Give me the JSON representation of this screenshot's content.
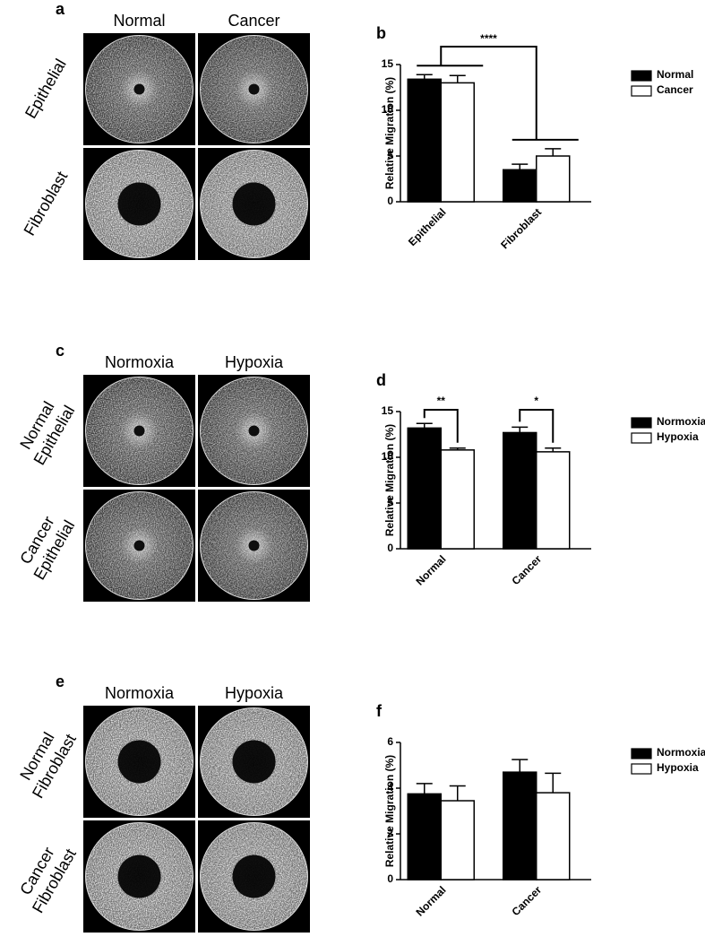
{
  "image_panels": [
    {
      "label": "a",
      "columns": [
        "Normal",
        "Cancer"
      ],
      "rows": [
        [
          "Epithelial"
        ],
        [
          "Fibroblast"
        ]
      ]
    },
    {
      "label": "c",
      "columns": [
        "Normoxia",
        "Hypoxia"
      ],
      "rows": [
        [
          "Normal",
          "Epithelial"
        ],
        [
          "Cancer",
          "Epithelial"
        ]
      ]
    },
    {
      "label": "e",
      "columns": [
        "Normoxia",
        "Hypoxia"
      ],
      "rows": [
        [
          "Normal",
          "Fibroblast"
        ],
        [
          "Cancer",
          "Fibroblast"
        ]
      ]
    }
  ],
  "chart_data": [
    {
      "type": "bar",
      "panel_label": "b",
      "y_label": "Relative Migration (%)",
      "categories": [
        "Epithelial",
        "Fibroblast"
      ],
      "series": [
        {
          "name": "Normal",
          "color": "#000000",
          "values": [
            13.4,
            3.5
          ],
          "errors": [
            0.5,
            0.6
          ]
        },
        {
          "name": "Cancer",
          "color": "#ffffff",
          "values": [
            13.0,
            5.0
          ],
          "errors": [
            0.8,
            0.8
          ]
        }
      ],
      "ylim": [
        0,
        15
      ],
      "yticks": [
        0,
        5,
        10,
        15
      ],
      "significance": "****"
    },
    {
      "type": "bar",
      "panel_label": "d",
      "y_label": "Relative Migration (%)",
      "categories": [
        "Normal",
        "Cancer"
      ],
      "series": [
        {
          "name": "Normoxia",
          "color": "#000000",
          "values": [
            13.2,
            12.7
          ],
          "errors": [
            0.5,
            0.6
          ]
        },
        {
          "name": "Hypoxia",
          "color": "#ffffff",
          "values": [
            10.8,
            10.6
          ],
          "errors": [
            0.2,
            0.4
          ]
        }
      ],
      "ylim": [
        0,
        15
      ],
      "yticks": [
        0,
        5,
        10,
        15
      ],
      "significance": [
        "**",
        "*"
      ]
    },
    {
      "type": "bar",
      "panel_label": "f",
      "y_label": "Relative Migration (%)",
      "categories": [
        "Normal",
        "Cancer"
      ],
      "series": [
        {
          "name": "Normoxia",
          "color": "#000000",
          "values": [
            3.75,
            4.7
          ],
          "errors": [
            0.45,
            0.55
          ]
        },
        {
          "name": "Hypoxia",
          "color": "#ffffff",
          "values": [
            3.45,
            3.8
          ],
          "errors": [
            0.65,
            0.85
          ]
        }
      ],
      "ylim": [
        0,
        6
      ],
      "yticks": [
        0,
        2,
        4,
        6
      ]
    }
  ]
}
